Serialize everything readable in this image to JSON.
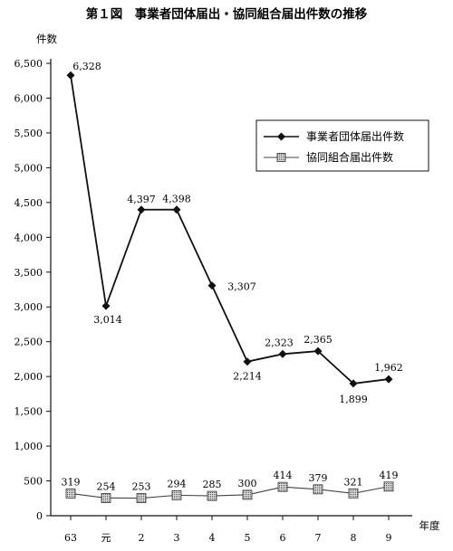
{
  "chart_data": {
    "type": "line",
    "title": "第１図　事業者団体届出・協同組合届出件数の推移",
    "ylabel": "件数",
    "xlabel": "年度",
    "categories": [
      "63",
      "元",
      "2",
      "3",
      "4",
      "5",
      "6",
      "7",
      "8",
      "9"
    ],
    "ylim": [
      0,
      6500
    ],
    "yticks": [
      "6,500",
      "6,000",
      "5,500",
      "5,000",
      "4,500",
      "4,000",
      "3,500",
      "3,000",
      "2,500",
      "2,000",
      "1,500",
      "1,000",
      "500",
      "0"
    ],
    "ytick_values": [
      6500,
      6000,
      5500,
      5000,
      4500,
      4000,
      3500,
      3000,
      2500,
      2000,
      1500,
      1000,
      500,
      0
    ],
    "grid": false,
    "legend_position": "right",
    "series": [
      {
        "name": "事業者団体届出件数",
        "marker": "diamond",
        "color": "#111111",
        "values": [
          6328,
          3014,
          4397,
          4398,
          3307,
          2214,
          2323,
          2365,
          1899,
          1962
        ],
        "labels": [
          "6,328",
          "3,014",
          "4,397",
          "4,398",
          "3,307",
          "2,214",
          "2,323",
          "2,365",
          "1,899",
          "1,962"
        ]
      },
      {
        "name": "協同組合届出件数",
        "marker": "square-hatched",
        "color": "#444444",
        "values": [
          319,
          254,
          253,
          294,
          285,
          300,
          414,
          379,
          321,
          419
        ],
        "labels": [
          "319",
          "254",
          "253",
          "294",
          "285",
          "300",
          "414",
          "379",
          "321",
          "419"
        ]
      }
    ]
  }
}
